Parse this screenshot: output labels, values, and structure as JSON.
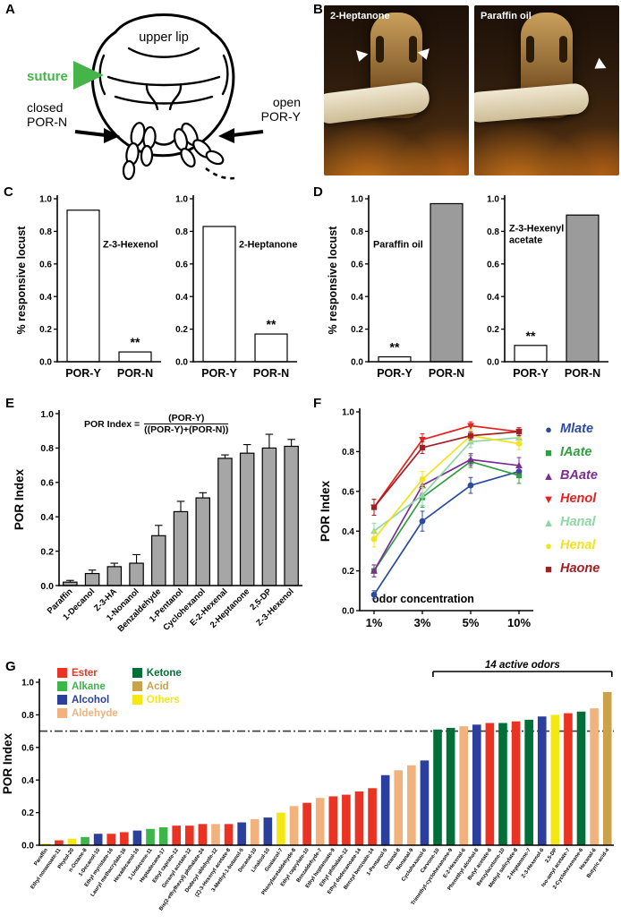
{
  "figure": {
    "panel_labels": {
      "A": "A",
      "B": "B",
      "C": "C",
      "D": "D",
      "E": "E",
      "F": "F",
      "G": "G"
    }
  },
  "panel_a": {
    "upper_lip": "upper lip",
    "suture": "suture",
    "suture_color": "#45b449",
    "closed_line1": "closed",
    "closed_line2": "POR-N",
    "open_line1": "open",
    "open_line2": "POR-Y"
  },
  "panel_b": {
    "photos": [
      {
        "caption": "2-Heptanone"
      },
      {
        "caption": "Paraffin oil"
      }
    ]
  },
  "formula": {
    "prefix": "POR Index =",
    "numerator": "(POR-Y)",
    "denominator": "((POR-Y)+(POR-N))"
  },
  "chart_data": [
    {
      "id": "c1",
      "type": "bar",
      "title": "Z-3-Hexenol",
      "ylabel": "% responsive locust",
      "ylim": [
        0,
        1
      ],
      "yticks": [
        0,
        0.2,
        0.4,
        0.6,
        0.8,
        1.0
      ],
      "categories": [
        "POR-Y",
        "POR-N"
      ],
      "values": [
        0.93,
        0.06
      ],
      "bar_colors": [
        "#ffffff",
        "#ffffff"
      ],
      "annotations": [
        {
          "index": 1,
          "text": "**"
        }
      ]
    },
    {
      "id": "c2",
      "type": "bar",
      "title": "2-Heptanone",
      "ylim": [
        0,
        1
      ],
      "yticks": [
        0,
        0.2,
        0.4,
        0.6,
        0.8,
        1.0
      ],
      "categories": [
        "POR-Y",
        "POR-N"
      ],
      "values": [
        0.83,
        0.17
      ],
      "bar_colors": [
        "#ffffff",
        "#ffffff"
      ],
      "annotations": [
        {
          "index": 1,
          "text": "**"
        }
      ]
    },
    {
      "id": "d1",
      "type": "bar",
      "title": "Paraffin oil",
      "ylabel": "% responsive locust",
      "ylim": [
        0,
        1
      ],
      "yticks": [
        0,
        0.2,
        0.4,
        0.6,
        0.8,
        1.0
      ],
      "categories": [
        "POR-Y",
        "POR-N"
      ],
      "values": [
        0.03,
        0.97
      ],
      "bar_colors": [
        "#ffffff",
        "#9b9b9b"
      ],
      "annotations": [
        {
          "index": 0,
          "text": "**"
        }
      ]
    },
    {
      "id": "d2",
      "type": "bar",
      "title": "Z-3-Hexenyl acetate",
      "title_lines": [
        "Z-3-Hexenyl",
        "acetate"
      ],
      "ylim": [
        0,
        1
      ],
      "yticks": [
        0,
        0.2,
        0.4,
        0.6,
        0.8,
        1.0
      ],
      "categories": [
        "POR-Y",
        "POR-N"
      ],
      "values": [
        0.1,
        0.9
      ],
      "bar_colors": [
        "#ffffff",
        "#9b9b9b"
      ],
      "annotations": [
        {
          "index": 0,
          "text": "**"
        }
      ]
    },
    {
      "id": "e",
      "type": "bar",
      "ylabel": "POR Index",
      "ylim": [
        0,
        1
      ],
      "yticks": [
        0,
        0.2,
        0.4,
        0.6,
        0.8,
        1.0
      ],
      "categories": [
        "Paraffin",
        "1-Decanol",
        "Z-3-HA",
        "1-Nonanol",
        "Benzaldehyde",
        "1-Pentanol",
        "Cyclohexanol",
        "E-2-Hexenal",
        "2-Heptanone",
        "2,5-DP",
        "Z-3-Hexenol"
      ],
      "values": [
        0.02,
        0.07,
        0.11,
        0.13,
        0.29,
        0.43,
        0.51,
        0.74,
        0.77,
        0.8,
        0.81
      ],
      "errors": [
        0.01,
        0.02,
        0.02,
        0.05,
        0.06,
        0.06,
        0.03,
        0.02,
        0.05,
        0.08,
        0.04
      ],
      "bar_colors": "#a6a6a6"
    },
    {
      "id": "f",
      "type": "line",
      "ylabel": "POR Index",
      "xlabel": "odor concentration",
      "x": [
        "1%",
        "3%",
        "5%",
        "10%"
      ],
      "ylim": [
        0,
        1
      ],
      "yticks": [
        0,
        0.2,
        0.4,
        0.6,
        0.8,
        1.0
      ],
      "series": [
        {
          "name": "Mlate",
          "color": "#2b4ba0",
          "marker": "circle",
          "values": [
            0.08,
            0.45,
            0.63,
            0.7
          ],
          "errors": [
            0.02,
            0.05,
            0.04,
            0.03
          ]
        },
        {
          "name": "IAate",
          "color": "#2f9e41",
          "marker": "square",
          "values": [
            0.2,
            0.57,
            0.75,
            0.68
          ],
          "errors": [
            0.03,
            0.05,
            0.03,
            0.04
          ]
        },
        {
          "name": "BAate",
          "color": "#7c2d92",
          "marker": "triangle-up",
          "values": [
            0.2,
            0.63,
            0.76,
            0.73
          ],
          "errors": [
            0.03,
            0.04,
            0.03,
            0.04
          ]
        },
        {
          "name": "Henol",
          "color": "#e8211d",
          "marker": "triangle-down",
          "values": [
            0.52,
            0.86,
            0.93,
            0.9
          ],
          "errors": [
            0.04,
            0.03,
            0.02,
            0.02
          ]
        },
        {
          "name": "Hanal",
          "color": "#8fd6a5",
          "marker": "triangle-up",
          "values": [
            0.4,
            0.58,
            0.85,
            0.87
          ],
          "errors": [
            0.04,
            0.05,
            0.03,
            0.02
          ]
        },
        {
          "name": "Henal",
          "color": "#f3e31c",
          "marker": "circle",
          "values": [
            0.36,
            0.66,
            0.88,
            0.84
          ],
          "errors": [
            0.04,
            0.04,
            0.03,
            0.03
          ]
        },
        {
          "name": "Haone",
          "color": "#a31e22",
          "marker": "square",
          "values": [
            0.52,
            0.82,
            0.88,
            0.9
          ],
          "errors": [
            0.04,
            0.03,
            0.02,
            0.02
          ]
        }
      ]
    },
    {
      "id": "g",
      "type": "bar",
      "ylabel": "POR Index",
      "ylim": [
        0,
        1
      ],
      "yticks": [
        0,
        0.2,
        0.4,
        0.6,
        0.8,
        1.0
      ],
      "threshold": 0.7,
      "bracket": {
        "label": "14 active odors",
        "from": 30,
        "to": 43
      },
      "legend": [
        [
          "Ester",
          "Alkane",
          "Alcohol",
          "Aldehyde"
        ],
        [
          "Ketone",
          "Acid",
          "Others"
        ]
      ],
      "class_colors": {
        "Ester": "#ea3323",
        "Alkane": "#3cb54a",
        "Alcohol": "#2b3f9e",
        "Aldehyde": "#f2b27e",
        "Ketone": "#007038",
        "Acid": "#c9a24b",
        "Others": "#f4e814"
      },
      "bars": [
        {
          "label": "Paraffin",
          "class": "Others",
          "value": 0.01
        },
        {
          "label": "Ethyl nonanoate-11",
          "class": "Ester",
          "value": 0.03
        },
        {
          "label": "Phytol-20",
          "class": "Others",
          "value": 0.04
        },
        {
          "label": "n-Octane-8",
          "class": "Alkane",
          "value": 0.05
        },
        {
          "label": "1-Decanol-10",
          "class": "Alcohol",
          "value": 0.07
        },
        {
          "label": "Ethyl myristate-16",
          "class": "Ester",
          "value": 0.07
        },
        {
          "label": "Lauryl methacrylate-16",
          "class": "Ester",
          "value": 0.08
        },
        {
          "label": "Hexadecanol-16",
          "class": "Alcohol",
          "value": 0.09
        },
        {
          "label": "1-Undecene-11",
          "class": "Alkane",
          "value": 0.1
        },
        {
          "label": "Heptadecane-17",
          "class": "Alkane",
          "value": 0.11
        },
        {
          "label": "Ethyl caprate-12",
          "class": "Ester",
          "value": 0.12
        },
        {
          "label": "Geranyl acetate-12",
          "class": "Ester",
          "value": 0.12
        },
        {
          "label": "Bis(2-ethylhexyl) phthalate-24",
          "class": "Ester",
          "value": 0.13
        },
        {
          "label": "Dodecyl aldehyde-12",
          "class": "Aldehyde",
          "value": 0.13
        },
        {
          "label": "(Z)-3-Hexenyl acetate-8",
          "class": "Ester",
          "value": 0.13
        },
        {
          "label": "3-Methyl-1-butanol-5",
          "class": "Alcohol",
          "value": 0.14
        },
        {
          "label": "Decanal-10",
          "class": "Aldehyde",
          "value": 0.16
        },
        {
          "label": "Linalool-10",
          "class": "Alcohol",
          "value": 0.17
        },
        {
          "label": "Guaiacol-7",
          "class": "Others",
          "value": 0.2
        },
        {
          "label": "Phenylacetaldehyde-8",
          "class": "Aldehyde",
          "value": 0.24
        },
        {
          "label": "Ethyl caprylate-10",
          "class": "Ester",
          "value": 0.26
        },
        {
          "label": "Benzaldehyde-7",
          "class": "Aldehyde",
          "value": 0.29
        },
        {
          "label": "Ethyl heptanoate-9",
          "class": "Ester",
          "value": 0.3
        },
        {
          "label": "Ethyl phthalate-12",
          "class": "Ester",
          "value": 0.31
        },
        {
          "label": "Ethyl dodecanoate-14",
          "class": "Ester",
          "value": 0.33
        },
        {
          "label": "Benzyl benzoate-14",
          "class": "Ester",
          "value": 0.35
        },
        {
          "label": "1-Pentanol-5",
          "class": "Alcohol",
          "value": 0.43
        },
        {
          "label": "Octanal-8",
          "class": "Aldehyde",
          "value": 0.46
        },
        {
          "label": "Nonanal-9",
          "class": "Aldehyde",
          "value": 0.49
        },
        {
          "label": "Cyclohexanol-6",
          "class": "Alcohol",
          "value": 0.52
        },
        {
          "label": "Carvone-10",
          "class": "Ketone",
          "value": 0.71
        },
        {
          "label": "Trimethyl-cyclohexanone-9",
          "class": "Ketone",
          "value": 0.72
        },
        {
          "label": "E-2-Hexenal-6",
          "class": "Aldehyde",
          "value": 0.73
        },
        {
          "label": "Phenethyl alcohol-8",
          "class": "Alcohol",
          "value": 0.74
        },
        {
          "label": "Butyl acetate-6",
          "class": "Ester",
          "value": 0.75
        },
        {
          "label": "Benzylacetone-10",
          "class": "Ketone",
          "value": 0.75
        },
        {
          "label": "Methyl salicylate-8",
          "class": "Ester",
          "value": 0.76
        },
        {
          "label": "2-Heptanone-7",
          "class": "Ketone",
          "value": 0.77
        },
        {
          "label": "Z-3-Hexenol-6",
          "class": "Alcohol",
          "value": 0.79
        },
        {
          "label": "2,5-DP",
          "class": "Others",
          "value": 0.8
        },
        {
          "label": "Iso-amyl acetate-7",
          "class": "Ester",
          "value": 0.81
        },
        {
          "label": "2-Cyclohexenone-6",
          "class": "Ketone",
          "value": 0.82
        },
        {
          "label": "Hexanal-6",
          "class": "Aldehyde",
          "value": 0.84
        },
        {
          "label": "Butyric acid-4",
          "class": "Acid",
          "value": 0.94
        }
      ]
    }
  ]
}
